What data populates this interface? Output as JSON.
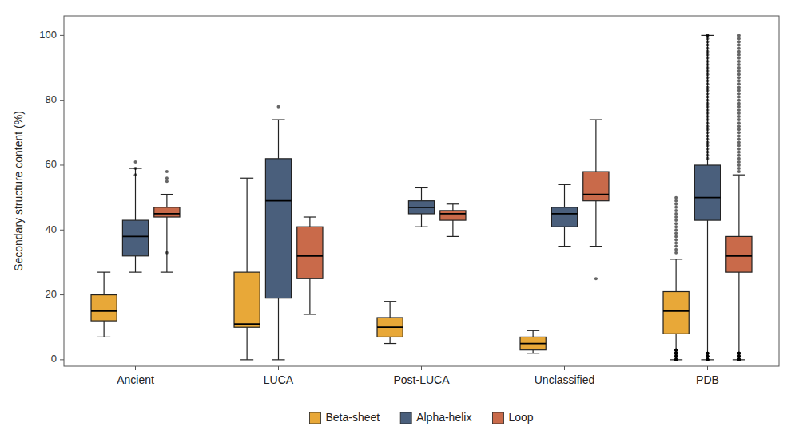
{
  "chart_data": {
    "type": "box",
    "ylabel": "Secondary structure content (%)",
    "categories": [
      "Ancient",
      "LUCA",
      "Post-LUCA",
      "Unclassified",
      "PDB"
    ],
    "series": [
      {
        "name": "Beta-sheet",
        "color": "#E8A838",
        "values": [
          {
            "whislo": 7,
            "q1": 12,
            "med": 15,
            "q3": 20,
            "whishi": 27,
            "fliers": []
          },
          {
            "whislo": 0,
            "q1": 10,
            "med": 11,
            "q3": 27,
            "whishi": 56,
            "fliers": []
          },
          {
            "whislo": 5,
            "q1": 7,
            "med": 10,
            "q3": 13,
            "whishi": 18,
            "fliers": []
          },
          {
            "whislo": 2,
            "q1": 3,
            "med": 5,
            "q3": 7,
            "whishi": 9,
            "fliers": []
          },
          {
            "whislo": 0,
            "q1": 8,
            "med": 15,
            "q3": 21,
            "whishi": 31,
            "fliers": [
              0,
              0,
              0,
              0,
              0,
              0,
              0,
              1,
              1,
              1,
              1,
              1,
              1,
              1,
              2,
              2,
              2,
              2,
              2,
              2,
              2,
              2,
              2,
              2,
              3,
              3,
              3,
              3,
              3,
              3,
              33,
              34,
              35,
              36,
              37,
              38,
              39,
              40,
              41,
              42,
              43,
              44,
              45,
              46,
              47,
              48,
              49,
              50
            ]
          }
        ]
      },
      {
        "name": "Alpha-helix",
        "color": "#4A5F7C",
        "values": [
          {
            "whislo": 27,
            "q1": 32,
            "med": 38,
            "q3": 43,
            "whishi": 59,
            "fliers": [
              61,
              59,
              57
            ]
          },
          {
            "whislo": 0,
            "q1": 19,
            "med": 49,
            "q3": 62,
            "whishi": 74,
            "fliers": [
              78
            ]
          },
          {
            "whislo": 41,
            "q1": 45,
            "med": 47,
            "q3": 49,
            "whishi": 53,
            "fliers": []
          },
          {
            "whislo": 35,
            "q1": 41,
            "med": 45,
            "q3": 47,
            "whishi": 54,
            "fliers": []
          },
          {
            "whislo": 0,
            "q1": 43,
            "med": 50,
            "q3": 60,
            "whishi": 100,
            "fliers": [
              0,
              0,
              0,
              0,
              0,
              0,
              0,
              0,
              0,
              1,
              1,
              1,
              1,
              1,
              1,
              1,
              1,
              2,
              2,
              2,
              2,
              2,
              2,
              2,
              62,
              63,
              64,
              65,
              66,
              67,
              68,
              69,
              70,
              71,
              72,
              73,
              74,
              75,
              76,
              77,
              78,
              79,
              80,
              81,
              82,
              83,
              84,
              85,
              86,
              87,
              88,
              89,
              90,
              91,
              92,
              93,
              94,
              95,
              96,
              97,
              98,
              99,
              100,
              100
            ]
          }
        ]
      },
      {
        "name": "Loop",
        "color": "#C96A4A",
        "values": [
          {
            "whislo": 27,
            "q1": 44,
            "med": 45,
            "q3": 47,
            "whishi": 51,
            "fliers": [
              58,
              56,
              55,
              33
            ]
          },
          {
            "whislo": 14,
            "q1": 25,
            "med": 32,
            "q3": 41,
            "whishi": 44,
            "fliers": []
          },
          {
            "whislo": 38,
            "q1": 43,
            "med": 45,
            "q3": 46,
            "whishi": 48,
            "fliers": []
          },
          {
            "whislo": 35,
            "q1": 49,
            "med": 51,
            "q3": 58,
            "whishi": 74,
            "fliers": [
              25
            ]
          },
          {
            "whislo": 0,
            "q1": 27,
            "med": 32,
            "q3": 38,
            "whishi": 57,
            "fliers": [
              0,
              0,
              0,
              0,
              0,
              0,
              0,
              0,
              1,
              1,
              1,
              1,
              1,
              1,
              1,
              2,
              2,
              2,
              2,
              2,
              2,
              58,
              59,
              60,
              61,
              62,
              63,
              64,
              65,
              66,
              67,
              68,
              69,
              70,
              71,
              72,
              73,
              74,
              75,
              76,
              77,
              78,
              79,
              80,
              81,
              82,
              83,
              84,
              85,
              86,
              87,
              88,
              89,
              90,
              91,
              92,
              93,
              94,
              95,
              96,
              97,
              98,
              99,
              100
            ]
          }
        ]
      }
    ],
    "ylim": [
      -2,
      106
    ],
    "yticks": [
      0,
      20,
      40,
      60,
      80,
      100
    ],
    "grid": false,
    "legend": "bottom"
  }
}
